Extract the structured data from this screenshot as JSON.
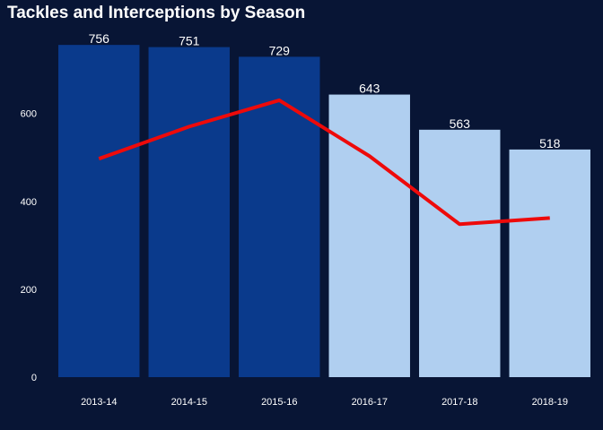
{
  "chart_data": {
    "type": "bar",
    "title": "Tackles and Interceptions by Season",
    "xlabel": "",
    "ylabel": "",
    "categories": [
      "2013-14",
      "2014-15",
      "2015-16",
      "2016-17",
      "2017-18",
      "2018-19"
    ],
    "series": [
      {
        "type": "bar",
        "values": [
          756,
          751,
          729,
          643,
          563,
          518
        ],
        "data_labels": [
          "756",
          "751",
          "729",
          "643",
          "563",
          "518"
        ],
        "colors": [
          "#0a3a8c",
          "#0a3a8c",
          "#0a3a8c",
          "#b0cff0",
          "#b0cff0",
          "#b0cff0"
        ]
      },
      {
        "type": "line",
        "values": [
          497,
          570,
          630,
          503,
          348,
          362
        ],
        "color": "#ee0a0a"
      }
    ],
    "yticks": [
      0,
      200,
      400,
      600
    ],
    "ytick_labels": [
      "0",
      "200",
      "400",
      "600"
    ],
    "ylim": [
      0,
      795
    ],
    "grid": false,
    "legend": "none",
    "background": "#081535"
  }
}
